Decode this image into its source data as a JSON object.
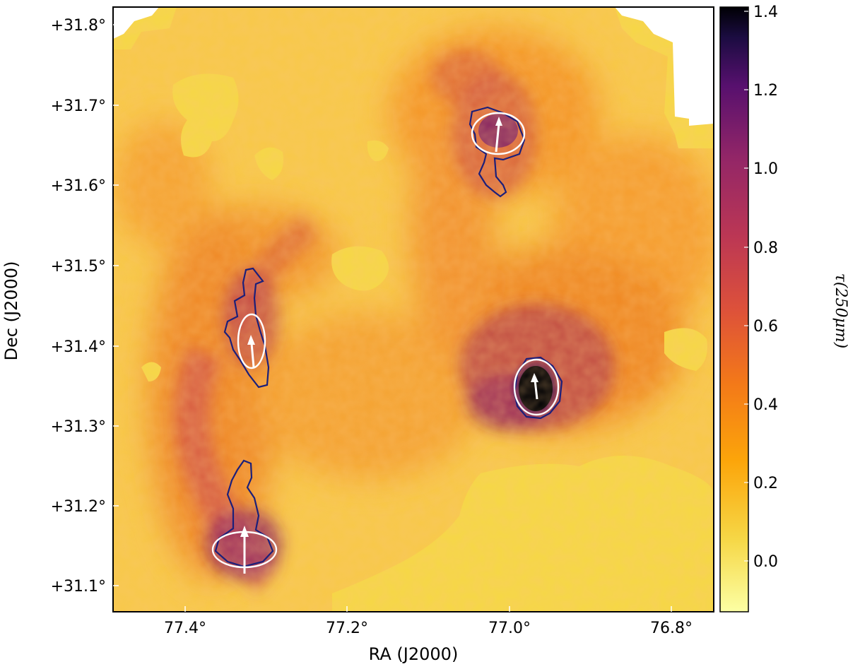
{
  "figure": {
    "xlabel": "RA (J2000)",
    "ylabel": "Dec (J2000)",
    "colorbar_label": "τ(250μm)"
  },
  "axes": {
    "x_ticks": [
      "77.4°",
      "77.2°",
      "77.0°",
      "76.8°"
    ],
    "y_ticks": [
      "+31.8°",
      "+31.7°",
      "+31.6°",
      "+31.5°",
      "+31.4°",
      "+31.3°",
      "+31.2°",
      "+31.1°"
    ],
    "colorbar_ticks": [
      "1.4",
      "1.2",
      "1.0",
      "0.8",
      "0.6",
      "0.4",
      "0.2",
      "0.0"
    ]
  },
  "colors": {
    "colormap": "inferno_r",
    "contour": "#1b1f7a",
    "ellipse": "#ffffff",
    "arrow": "#ffffff"
  },
  "chart_data": {
    "type": "heatmap",
    "title": "",
    "xlabel": "RA (J2000)",
    "ylabel": "Dec (J2000)",
    "x_axis_reversed": true,
    "xlim": [
      77.58,
      76.7
    ],
    "ylim": [
      31.07,
      31.82
    ],
    "x_ticks": [
      77.4,
      77.2,
      77.0,
      76.8
    ],
    "y_ticks": [
      31.8,
      31.7,
      31.6,
      31.5,
      31.4,
      31.3,
      31.2,
      31.1
    ],
    "colorbar": {
      "label": "τ(250μm)",
      "vmin": -0.12,
      "vmax": 1.4,
      "ticks": [
        0.0,
        0.2,
        0.4,
        0.6,
        0.8,
        1.0,
        1.2,
        1.4
      ]
    },
    "sources": [
      {
        "ra": 77.37,
        "dec": 31.38,
        "tau": 0.75
      },
      {
        "ra": 77.38,
        "dec": 31.15,
        "tau": 0.85
      },
      {
        "ra": 77.01,
        "dec": 31.66,
        "tau": 0.7
      },
      {
        "ra": 76.96,
        "dec": 31.34,
        "tau": 1.4
      }
    ]
  }
}
